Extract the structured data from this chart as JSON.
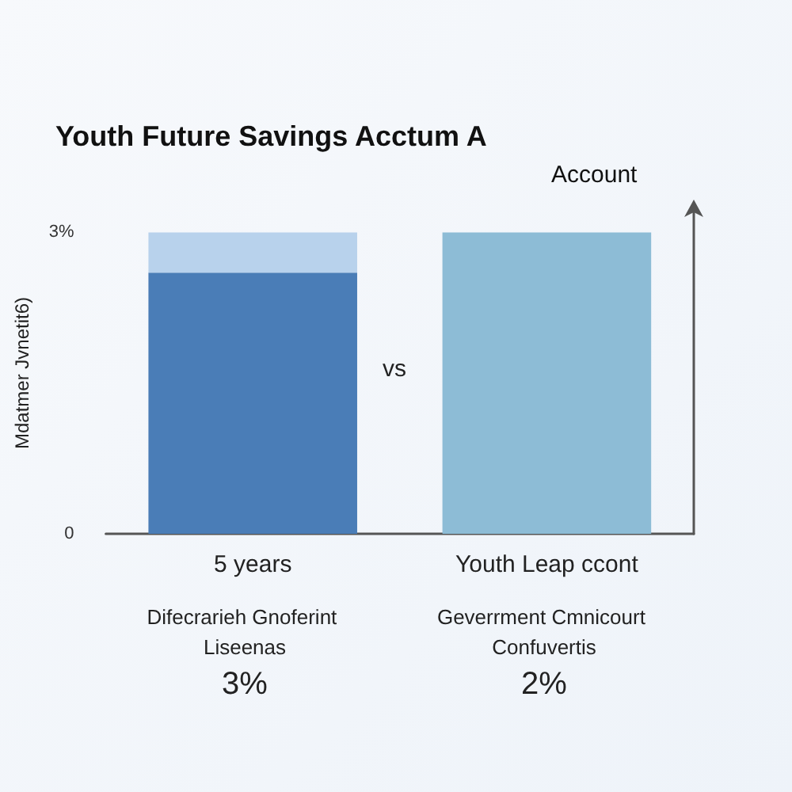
{
  "chart_data": {
    "type": "bar",
    "title": "Youth Future Savings Acctum A",
    "subtitle": "Account",
    "ylabel": "Mdatmer Jvnetit6)",
    "categories": [
      "5 years",
      "Youth Leap ccont"
    ],
    "series": [
      {
        "colors": [
          "#4a7db7",
          "#8dbcd6"
        ],
        "values": [
          2.6,
          3
        ]
      },
      {
        "color": "#b8d2ec",
        "values": [
          0.4,
          null
        ]
      }
    ],
    "stacked": true,
    "ylim": [
      0,
      3.2
    ],
    "yticks": [
      0,
      {
        "value": 3,
        "label": "3%"
      }
    ],
    "annotations": [
      "vs",
      "Difecrarieh Gnoferint Liseenas",
      "3%",
      "Geverrment Cmnicourt Confuvertis",
      "2%"
    ]
  }
}
